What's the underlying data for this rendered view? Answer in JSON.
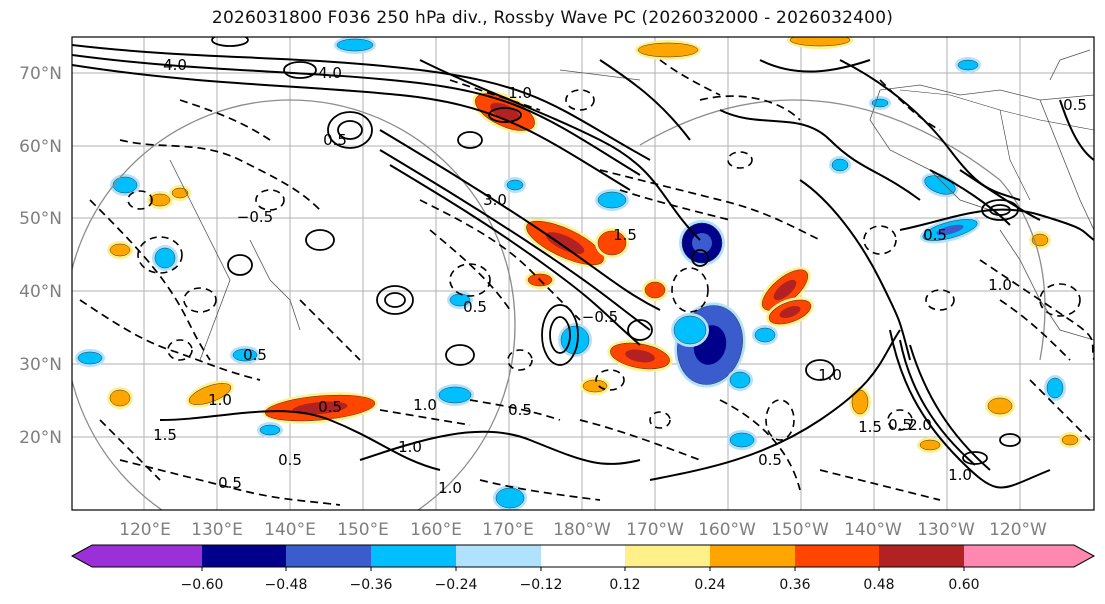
{
  "title": "2026031800 F036 250 hPa div., Rossby Wave PC (2026032000 - 2026032400)",
  "lat_labels": [
    "70°N",
    "60°N",
    "50°N",
    "40°N",
    "30°N",
    "20°N"
  ],
  "lon_labels": [
    "120°E",
    "130°E",
    "140°E",
    "150°E",
    "160°E",
    "170°E",
    "180°W",
    "170°W",
    "160°W",
    "150°W",
    "140°W",
    "130°W",
    "120°W"
  ],
  "colorbar": {
    "ticks": [
      "−0.60",
      "−0.48",
      "−0.36",
      "−0.24",
      "−0.12",
      "0.12",
      "0.24",
      "0.36",
      "0.48",
      "0.60"
    ],
    "colors": [
      "#9b30d9",
      "#00008b",
      "#3b5ccc",
      "#00bfff",
      "#b0e2ff",
      "#ffffff",
      "#fff08a",
      "#ffa500",
      "#ff4500",
      "#b22222",
      "#ff88b0"
    ]
  },
  "contour_labels": [
    "4.0",
    "4.0",
    "1.0",
    "0.5",
    "−0.5",
    "0.5",
    "0.5",
    "3.0",
    "1.5",
    "1.0",
    "0.5",
    "1.0",
    "0.5",
    "1.0",
    "1.5",
    "0.5",
    "1.0",
    "0.5",
    "−0.5",
    "0.5",
    "1.5",
    "1.0",
    "0.5",
    "0.5",
    "0.5",
    "1.0",
    "2.0",
    "1.0"
  ]
}
